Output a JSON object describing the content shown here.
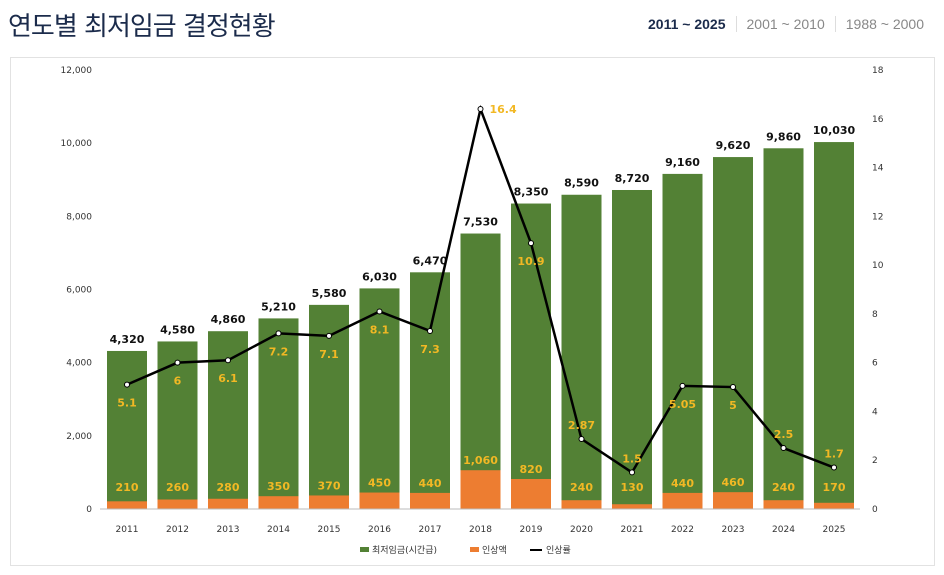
{
  "header": {
    "title": "연도별 최저임금 결정현황",
    "ranges": [
      "2011 ~ 2025",
      "2001 ~ 2010",
      "1988 ~ 2000"
    ],
    "active_range": "2011 ~ 2025"
  },
  "chart_data": {
    "type": "bar",
    "categories": [
      "2011",
      "2012",
      "2013",
      "2014",
      "2015",
      "2016",
      "2017",
      "2018",
      "2019",
      "2020",
      "2021",
      "2022",
      "2023",
      "2024",
      "2025"
    ],
    "series": [
      {
        "name": "최저임금(시간급)",
        "type": "bar",
        "axis": "left",
        "color": "#538135",
        "values": [
          4320,
          4580,
          4860,
          5210,
          5580,
          6030,
          6470,
          7530,
          8350,
          8590,
          8720,
          9160,
          9620,
          9860,
          10030
        ],
        "labels": [
          "4,320",
          "4,580",
          "4,860",
          "5,210",
          "5,580",
          "6,030",
          "6,470",
          "7,530",
          "8,350",
          "8,590",
          "8,720",
          "9,160",
          "9,620",
          "9,860",
          "10,030"
        ]
      },
      {
        "name": "인상액",
        "type": "bar",
        "axis": "left",
        "color": "#ed7d31",
        "values": [
          210,
          260,
          280,
          350,
          370,
          450,
          440,
          1060,
          820,
          240,
          130,
          440,
          460,
          240,
          170
        ],
        "labels": [
          "210",
          "260",
          "280",
          "350",
          "370",
          "450",
          "440",
          "1,060",
          "820",
          "240",
          "130",
          "440",
          "460",
          "240",
          "170"
        ]
      },
      {
        "name": "인상률",
        "type": "line",
        "axis": "right",
        "color": "#000000",
        "values": [
          5.1,
          6,
          6.1,
          7.2,
          7.1,
          8.1,
          7.3,
          16.4,
          10.9,
          2.87,
          1.5,
          5.05,
          5,
          2.5,
          1.7
        ],
        "labels": [
          "5.1",
          "6",
          "6.1",
          "7.2",
          "7.1",
          "8.1",
          "7.3",
          "16.4",
          "10.9",
          "2.87",
          "1.5",
          "5.05",
          "5",
          "2.5",
          "1.7"
        ]
      }
    ],
    "ylim": [
      0,
      12000
    ],
    "y_ticks": [
      "0",
      "2,000",
      "4,000",
      "6,000",
      "8,000",
      "10,000",
      "12,000"
    ],
    "y2lim": [
      0,
      18
    ],
    "y2_ticks": [
      "0",
      "2",
      "4",
      "6",
      "8",
      "10",
      "12",
      "14",
      "16",
      "18"
    ],
    "label_color": "#f2b824",
    "legend_position": "bottom",
    "grid": false
  }
}
